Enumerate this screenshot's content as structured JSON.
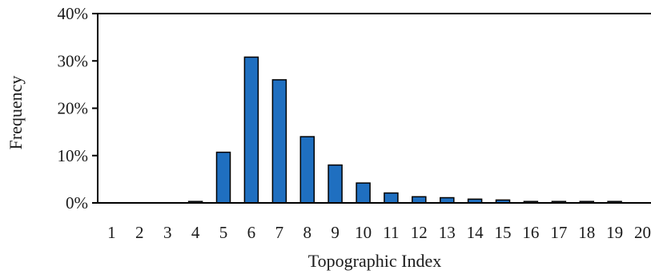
{
  "chart_data": {
    "type": "bar",
    "title": "",
    "xlabel": "Topographic Index",
    "ylabel": "Frequency",
    "categories": [
      "1",
      "2",
      "3",
      "4",
      "5",
      "6",
      "7",
      "8",
      "9",
      "10",
      "11",
      "12",
      "13",
      "14",
      "15",
      "16",
      "17",
      "18",
      "19",
      "20"
    ],
    "values": [
      0,
      0,
      0,
      0.3,
      10.7,
      30.8,
      26.0,
      14.0,
      8.0,
      4.2,
      2.1,
      1.3,
      1.1,
      0.8,
      0.6,
      0.3,
      0.3,
      0.3,
      0.3,
      0
    ],
    "value_unit": "percent",
    "yticks": [
      "0%",
      "10%",
      "20%",
      "30%",
      "40%"
    ],
    "ylim": [
      0,
      40
    ],
    "grid": false,
    "legend": "none",
    "bar_color": "#1f6fc0",
    "bar_edge_color": "#000000"
  }
}
